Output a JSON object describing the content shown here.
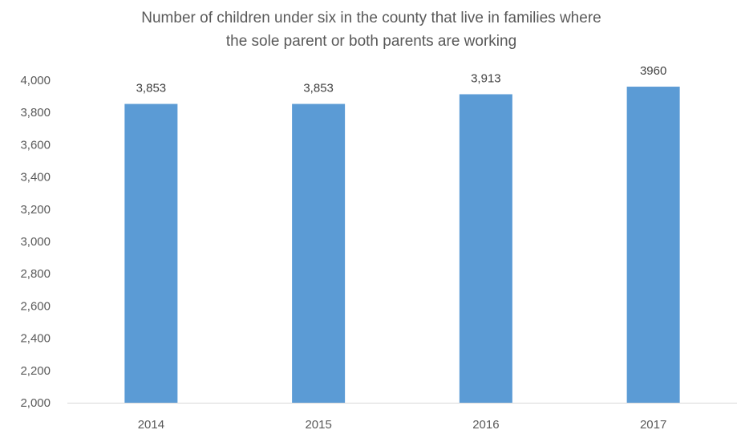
{
  "chart_data": {
    "type": "bar",
    "title_lines": [
      "Number of children under six in the county that live in families where",
      "the sole parent or both parents are working"
    ],
    "categories": [
      "2014",
      "2015",
      "2016",
      "2017"
    ],
    "values": [
      3853,
      3853,
      3913,
      3960
    ],
    "data_labels": [
      "3,853",
      "3,853",
      "3,913",
      "3960"
    ],
    "ylim": [
      2000,
      4000
    ],
    "yticks": [
      2000,
      2200,
      2400,
      2600,
      2800,
      3000,
      3200,
      3400,
      3600,
      3800,
      4000
    ],
    "ytick_labels": [
      "2,000",
      "2,200",
      "2,400",
      "2,600",
      "2,800",
      "3,000",
      "3,200",
      "3,400",
      "3,600",
      "3,800",
      "4,000"
    ],
    "bar_color": "#5b9bd5",
    "axis_color": "#d9d9d9",
    "grid": false,
    "legend": "none"
  }
}
